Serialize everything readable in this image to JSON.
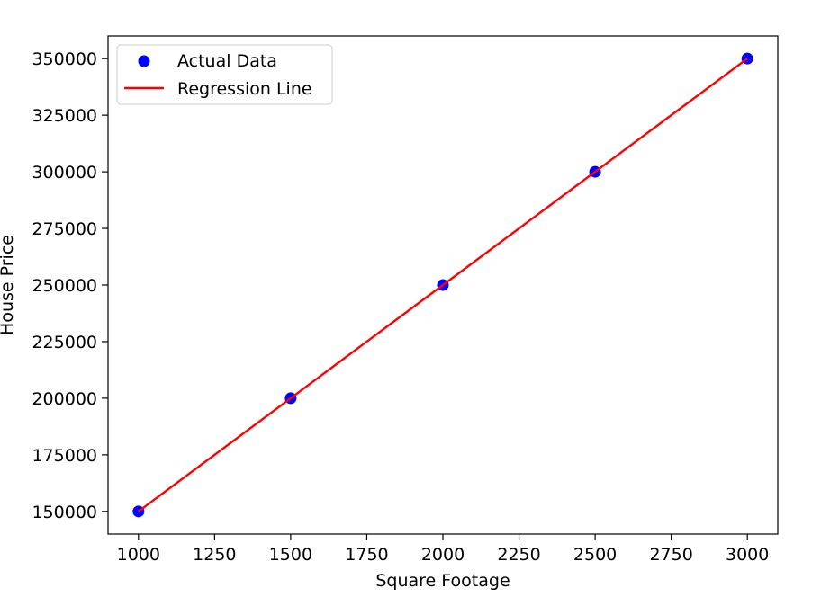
{
  "chart_data": {
    "type": "scatter",
    "title": "",
    "xlabel": "Square Footage",
    "ylabel": "House Price",
    "xlim": [
      900,
      3100
    ],
    "ylim": [
      140000,
      360000
    ],
    "x_ticks": [
      1000,
      1250,
      1500,
      1750,
      2000,
      2250,
      2500,
      2750,
      3000
    ],
    "y_ticks": [
      150000,
      175000,
      200000,
      225000,
      250000,
      275000,
      300000,
      325000,
      350000
    ],
    "grid": false,
    "legend_position": "top-left",
    "series": [
      {
        "name": "Actual Data",
        "kind": "scatter",
        "color": "#0000ff",
        "x": [
          1000,
          1500,
          2000,
          2500,
          3000
        ],
        "y": [
          150000,
          200000,
          250000,
          300000,
          350000
        ]
      },
      {
        "name": "Regression Line",
        "kind": "line",
        "color": "#ff0000",
        "x": [
          1000,
          1500,
          2000,
          2500,
          3000
        ],
        "y": [
          150000,
          200000,
          250000,
          300000,
          350000
        ]
      }
    ]
  }
}
